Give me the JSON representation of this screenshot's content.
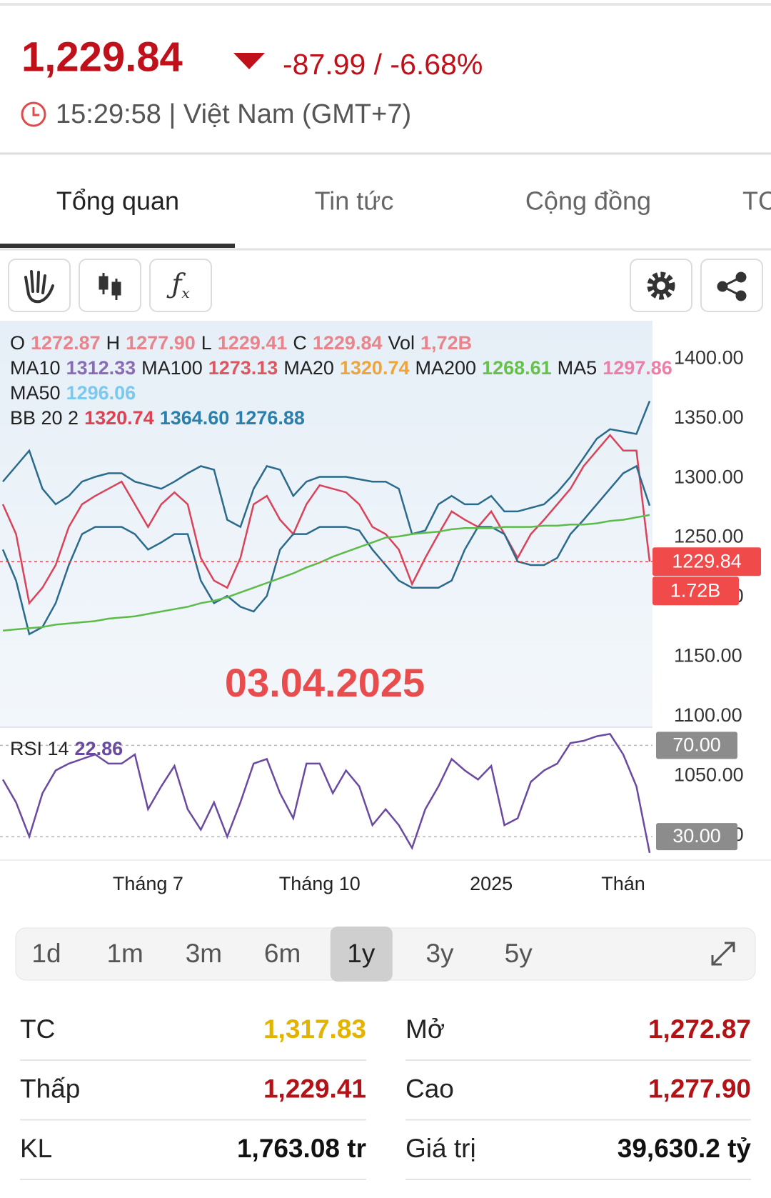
{
  "header": {
    "price": "1,229.84",
    "change": "-87.99 / -6.68%",
    "time": "15:29:58 | Việt Nam (GMT+7)"
  },
  "tabs": [
    "Tổng quan",
    "Tin tức",
    "Cộng đồng",
    "TC"
  ],
  "indicators": [
    [
      {
        "label": "O",
        "value": "1272.87",
        "color": "#e8858c"
      },
      {
        "label": "H",
        "value": "1277.90",
        "color": "#e8858c"
      },
      {
        "label": "L",
        "value": "1229.41",
        "color": "#e8858c"
      },
      {
        "label": "C",
        "value": "1229.84",
        "color": "#e8858c"
      },
      {
        "label": "Vol",
        "value": "1,72B",
        "color": "#e8858c"
      }
    ],
    [
      {
        "label": "MA10",
        "value": "1312.33",
        "color": "#8a6bb8"
      },
      {
        "label": "MA100",
        "value": "1273.13",
        "color": "#e0565f"
      },
      {
        "label": "MA20",
        "value": "1320.74",
        "color": "#f0a53a"
      },
      {
        "label": "MA200",
        "value": "1268.61",
        "color": "#66c24a"
      },
      {
        "label": "MA5",
        "value": "1297.86",
        "color": "#ef7fa8"
      }
    ],
    [
      {
        "label": "MA50",
        "value": "1296.06",
        "color": "#7cc8ee"
      }
    ],
    [
      {
        "label": "BB 20 2",
        "value": "1320.74",
        "color": "#e0404f"
      },
      {
        "label": "",
        "value": "1364.60",
        "color": "#2a7fab"
      },
      {
        "label": "",
        "value": "1276.88",
        "color": "#2a7fab"
      }
    ]
  ],
  "watermark": "03.04.2025",
  "last_volume": "1.72B",
  "chart_data": [
    {
      "type": "line",
      "categories": [
        null,
        null,
        null,
        null,
        null,
        null,
        null,
        null,
        null,
        null,
        null,
        "Tháng 7",
        null,
        null,
        null,
        null,
        null,
        null,
        null,
        null,
        null,
        null,
        null,
        null,
        "Tháng 10",
        null,
        null,
        null,
        null,
        null,
        null,
        null,
        null,
        null,
        null,
        null,
        null,
        "2025",
        null,
        null,
        null,
        null,
        null,
        null,
        null,
        null,
        null,
        "Thán",
        null,
        null
      ],
      "series": [
        {
          "color": "#d9435a",
          "values": [
            1278,
            1253,
            1195,
            1208,
            1227,
            1259,
            1278,
            1285,
            1291,
            1297,
            1278,
            1259,
            1278,
            1288,
            1278,
            1233,
            1214,
            1208,
            1233,
            1278,
            1285,
            1265,
            1253,
            1278,
            1294,
            1291,
            1288,
            1278,
            1259,
            1253,
            1240,
            1211,
            1233,
            1253,
            1272,
            1265,
            1259,
            1272,
            1253,
            1233,
            1253,
            1265,
            1278,
            1291,
            1310,
            1323,
            1336,
            1323,
            1323,
            1229.84
          ]
        },
        {
          "color": "#2a6a8a",
          "values": [
            1297,
            1310,
            1323,
            1291,
            1278,
            1285,
            1297,
            1301,
            1304,
            1304,
            1297,
            1294,
            1291,
            1297,
            1304,
            1310,
            1307,
            1265,
            1259,
            1291,
            1310,
            1307,
            1285,
            1297,
            1301,
            1301,
            1301,
            1299,
            1297,
            1297,
            1291,
            1253,
            1256,
            1278,
            1285,
            1278,
            1278,
            1285,
            1272,
            1272,
            1275,
            1278,
            1288,
            1301,
            1317,
            1333,
            1341,
            1339,
            1337,
            1364.6
          ]
        },
        {
          "color": "#2a6a8a",
          "values": [
            1240,
            1214,
            1169,
            1175,
            1195,
            1227,
            1253,
            1259,
            1259,
            1259,
            1253,
            1240,
            1246,
            1253,
            1253,
            1214,
            1195,
            1201,
            1192,
            1188,
            1201,
            1240,
            1253,
            1253,
            1259,
            1259,
            1259,
            1256,
            1240,
            1227,
            1214,
            1208,
            1208,
            1208,
            1214,
            1240,
            1259,
            1259,
            1253,
            1230,
            1227,
            1227,
            1233,
            1253,
            1265,
            1278,
            1291,
            1304,
            1310,
            1276.88
          ]
        },
        {
          "color": "#5dbb4a",
          "values": [
            1172,
            1173,
            1174,
            1175,
            1177,
            1178,
            1179,
            1180,
            1182,
            1183,
            1184,
            1186,
            1188,
            1190,
            1192,
            1195,
            1197,
            1200,
            1204,
            1208,
            1212,
            1216,
            1220,
            1225,
            1229,
            1234,
            1238,
            1242,
            1246,
            1250,
            1251,
            1253,
            1254,
            1255,
            1257,
            1258,
            1258,
            1258,
            1259,
            1259,
            1259,
            1260,
            1260,
            1261,
            1261,
            1262,
            1264,
            1265,
            1267,
            1269
          ]
        }
      ],
      "ylim": [
        980,
        1432
      ],
      "yticks": [
        {
          "value": 1000,
          "label": "1000.00"
        },
        {
          "value": 1050,
          "label": "1050.00"
        },
        {
          "value": 1100,
          "label": "1100.00"
        },
        {
          "value": 1150,
          "label": "1150.00"
        },
        {
          "value": 1200,
          "label": "1200.00"
        },
        {
          "value": 1250,
          "label": "1250.00"
        },
        {
          "value": 1300,
          "label": "1300.00"
        },
        {
          "value": 1350,
          "label": "1350.00"
        },
        {
          "value": 1400,
          "label": "1400.00"
        }
      ],
      "last_color": "#f04a4a"
    },
    {
      "type": "line",
      "title": "RSI 14",
      "series": [
        {
          "color": "#6a4aa0",
          "values": [
            55,
            45,
            30,
            49,
            59,
            62,
            64,
            66,
            62,
            62,
            66,
            42,
            52,
            61,
            42,
            33,
            45,
            30,
            45,
            62,
            64,
            49,
            38,
            62,
            62,
            49,
            59,
            52,
            35,
            42,
            35,
            25,
            42,
            52,
            64,
            59,
            55,
            61,
            35,
            38,
            54,
            59,
            62,
            71,
            72,
            74,
            75,
            66,
            52,
            22.86
          ]
        }
      ],
      "ylim": [
        20,
        77
      ],
      "yticks": [
        {
          "value": 70,
          "label": "70.00"
        },
        {
          "value": 30,
          "label": "30.00"
        }
      ],
      "grid": true
    }
  ],
  "periods": [
    "1d",
    "1m",
    "3m",
    "6m",
    "1y",
    "3y",
    "5y"
  ],
  "selected_period": 4,
  "stats": [
    [
      {
        "label": "TC",
        "value": "1,317.83",
        "color": "#e2b400"
      },
      {
        "label": "Mở",
        "value": "1,272.87",
        "color": "#b31217"
      }
    ],
    [
      {
        "label": "Thấp",
        "value": "1,229.41",
        "color": "#b31217"
      },
      {
        "label": "Cao",
        "value": "1,277.90",
        "color": "#b31217"
      }
    ],
    [
      {
        "label": "KL",
        "value": "1,763.08 tr",
        "color": "#111111"
      },
      {
        "label": "Giá trị",
        "value": "39,630.2 tỷ",
        "color": "#111111"
      }
    ]
  ]
}
